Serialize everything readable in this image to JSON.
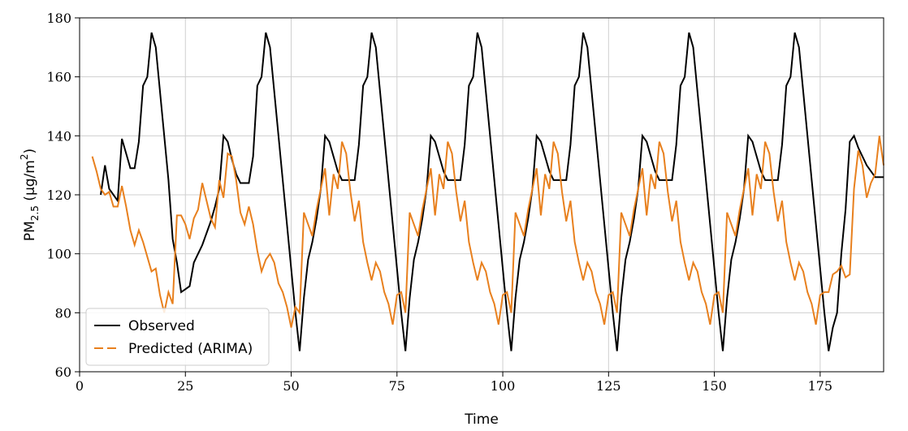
{
  "chart_data": {
    "type": "line",
    "xlabel": "Time",
    "ylabel": [
      "PM",
      "2.5",
      " (μg/m",
      "2",
      ")"
    ],
    "xlim": [
      0,
      190
    ],
    "ylim": [
      60,
      180
    ],
    "xticks": [
      0,
      25,
      50,
      75,
      100,
      125,
      150,
      175
    ],
    "yticks": [
      60,
      80,
      100,
      120,
      140,
      160,
      180
    ],
    "grid": true,
    "legend": "lower left",
    "x": [
      3,
      4,
      5,
      6,
      7,
      8,
      9,
      10,
      11,
      12,
      13,
      14,
      15,
      16,
      17,
      18,
      19,
      20,
      21,
      22,
      23,
      24,
      25,
      26,
      27,
      28,
      29,
      30,
      31,
      32,
      33,
      34,
      35,
      36,
      37,
      38,
      39,
      40,
      41,
      42,
      43,
      44,
      45,
      46,
      47,
      48,
      49,
      50,
      51,
      52,
      53,
      54,
      55,
      56,
      57,
      58,
      59,
      60,
      61,
      62,
      63,
      64,
      65,
      66,
      67,
      68,
      69,
      70,
      71,
      72,
      73,
      74,
      75,
      76,
      77,
      78,
      79,
      80,
      81,
      82,
      83,
      84,
      85,
      86,
      87,
      88,
      89,
      90,
      91,
      92,
      93,
      94,
      95,
      96,
      97,
      98,
      99,
      100,
      101,
      102,
      103,
      104,
      105,
      106,
      107,
      108,
      109,
      110,
      111,
      112,
      113,
      114,
      115,
      116,
      117,
      118,
      119,
      120,
      121,
      122,
      123,
      124,
      125,
      126,
      127,
      128,
      129,
      130,
      131,
      132,
      133,
      134,
      135,
      136,
      137,
      138,
      139,
      140,
      141,
      142,
      143,
      144,
      145,
      146,
      147,
      148,
      149,
      150,
      151,
      152,
      153,
      154,
      155,
      156,
      157,
      158,
      159,
      160,
      161,
      162,
      163,
      164,
      165,
      166,
      167,
      168,
      169,
      170,
      171,
      172,
      173,
      174,
      175,
      176,
      177,
      178,
      179,
      180,
      181,
      182,
      183,
      184,
      185,
      186,
      187,
      188,
      189,
      190
    ],
    "series": [
      {
        "name": "Observed",
        "color": "#000000",
        "legend_line": "solid",
        "values": [
          null,
          null,
          120,
          130,
          122,
          120,
          118,
          139,
          134,
          129,
          129,
          138,
          157,
          160,
          175,
          170,
          155,
          140,
          125,
          105,
          97,
          87,
          88,
          89,
          97,
          100,
          103,
          107,
          111,
          116,
          122,
          140,
          138,
          132,
          127,
          124,
          124,
          124,
          133,
          157,
          160,
          175,
          170,
          155,
          140,
          125,
          110,
          95,
          80,
          67,
          85,
          98,
          104,
          112,
          122,
          140,
          138,
          133,
          128,
          125,
          125,
          125,
          125,
          137,
          157,
          160,
          175,
          170,
          155,
          140,
          125,
          110,
          95,
          80,
          67,
          85,
          98,
          104,
          112,
          122,
          140,
          138,
          133,
          128,
          125,
          125,
          125,
          125,
          137,
          157,
          160,
          175,
          170,
          155,
          140,
          125,
          110,
          95,
          80,
          67,
          85,
          98,
          104,
          112,
          122,
          140,
          138,
          133,
          128,
          125,
          125,
          125,
          125,
          137,
          157,
          160,
          175,
          170,
          155,
          140,
          125,
          110,
          95,
          80,
          67,
          85,
          98,
          104,
          112,
          122,
          140,
          138,
          133,
          128,
          125,
          125,
          125,
          125,
          137,
          157,
          160,
          175,
          170,
          155,
          140,
          125,
          110,
          95,
          80,
          67,
          85,
          98,
          104,
          112,
          122,
          140,
          138,
          133,
          128,
          125,
          125,
          125,
          125,
          137,
          157,
          160,
          175,
          170,
          155,
          140,
          125,
          110,
          95,
          80,
          67,
          75,
          80,
          100,
          115,
          138,
          140,
          136,
          133,
          130,
          128,
          126,
          126,
          126
        ]
      },
      {
        "name": "Predicted (ARIMA)",
        "color": "#e8801e",
        "legend_line": "dashed",
        "values": [
          133,
          128,
          122,
          120,
          121,
          116,
          116,
          123,
          116,
          108,
          103,
          108,
          104,
          99,
          94,
          95,
          86,
          80,
          87,
          83,
          113,
          113,
          110,
          105,
          112,
          115,
          124,
          118,
          112,
          109,
          125,
          119,
          134,
          133,
          125,
          114,
          110,
          116,
          110,
          101,
          94,
          98,
          100,
          97,
          90,
          87,
          82,
          75,
          82,
          80,
          114,
          110,
          106,
          115,
          122,
          129,
          113,
          127,
          122,
          138,
          134,
          121,
          111,
          118,
          104,
          97,
          91,
          97,
          94,
          87,
          83,
          76,
          86,
          87,
          80,
          114,
          110,
          106,
          115,
          122,
          129,
          113,
          127,
          122,
          138,
          134,
          121,
          111,
          118,
          104,
          97,
          91,
          97,
          94,
          87,
          83,
          76,
          86,
          87,
          80,
          114,
          110,
          106,
          115,
          122,
          129,
          113,
          127,
          122,
          138,
          134,
          121,
          111,
          118,
          104,
          97,
          91,
          97,
          94,
          87,
          83,
          76,
          86,
          87,
          80,
          114,
          110,
          106,
          115,
          122,
          129,
          113,
          127,
          122,
          138,
          134,
          121,
          111,
          118,
          104,
          97,
          91,
          97,
          94,
          87,
          83,
          76,
          86,
          87,
          80,
          114,
          110,
          106,
          115,
          122,
          129,
          113,
          127,
          122,
          138,
          134,
          121,
          111,
          118,
          104,
          97,
          91,
          97,
          94,
          87,
          83,
          76,
          86,
          87,
          87,
          93,
          94,
          96,
          92,
          93,
          122,
          135,
          130,
          119,
          124,
          127,
          140,
          130
        ]
      }
    ]
  }
}
